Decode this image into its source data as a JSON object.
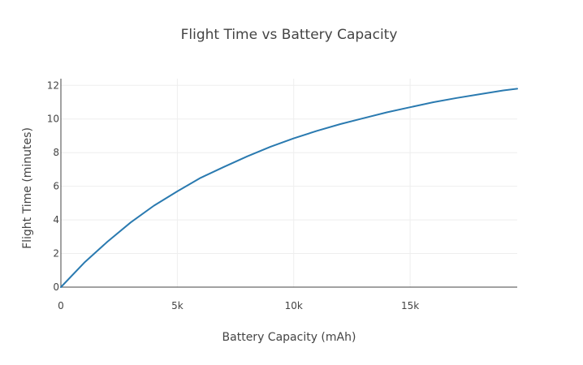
{
  "chart_data": {
    "type": "line",
    "title": "Flight Time vs Battery Capacity",
    "xlabel": "Battery Capacity (mAh)",
    "ylabel": "Flight Time (minutes)",
    "xlim": [
      0,
      19600
    ],
    "ylim": [
      0,
      12.4
    ],
    "grid": true,
    "legend": "none",
    "line_color": "#2a7ab0",
    "x_ticks": [
      {
        "value": 0,
        "label": "0"
      },
      {
        "value": 5000,
        "label": "5k"
      },
      {
        "value": 10000,
        "label": "10k"
      },
      {
        "value": 15000,
        "label": "15k"
      }
    ],
    "y_ticks": [
      {
        "value": 0,
        "label": "0"
      },
      {
        "value": 2,
        "label": "2"
      },
      {
        "value": 4,
        "label": "4"
      },
      {
        "value": 6,
        "label": "6"
      },
      {
        "value": 8,
        "label": "8"
      },
      {
        "value": 10,
        "label": "10"
      },
      {
        "value": 12,
        "label": "12"
      }
    ],
    "series": [
      {
        "x": [
          0,
          1000,
          2000,
          3000,
          4000,
          5000,
          6000,
          7000,
          8000,
          9000,
          10000,
          11000,
          12000,
          13000,
          14000,
          15000,
          16000,
          17000,
          18000,
          19000,
          19600
        ],
        "y": [
          0,
          1.45,
          2.7,
          3.85,
          4.85,
          5.7,
          6.5,
          7.15,
          7.78,
          8.35,
          8.85,
          9.3,
          9.7,
          10.05,
          10.4,
          10.7,
          11.0,
          11.25,
          11.48,
          11.7,
          11.8
        ]
      }
    ]
  }
}
